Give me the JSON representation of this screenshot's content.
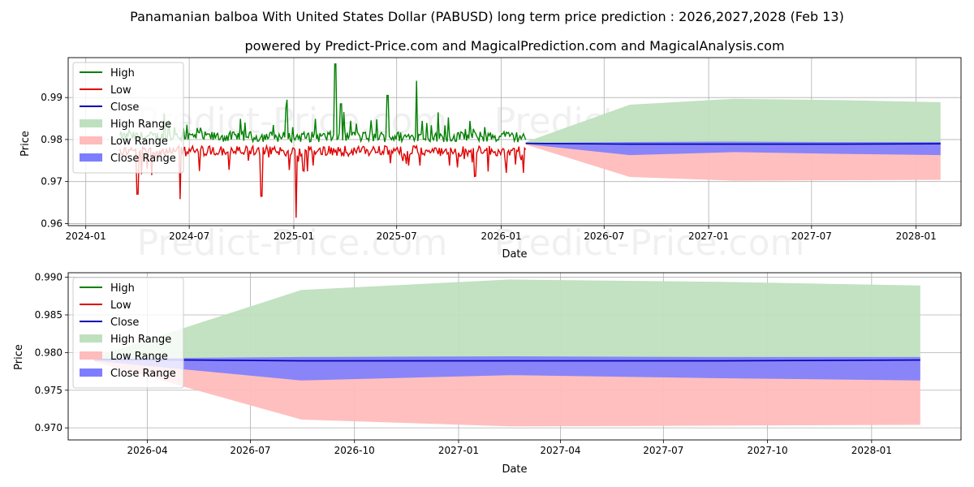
{
  "title": "Panamanian balboa With United States Dollar (PABUSD) long term price prediction : 2026,2027,2028 (Feb 13)",
  "subtitle": "powered by Predict-Price.com and MagicalPrediction.com and MagicalAnalysis.com",
  "watermark": "Predict-Price.com",
  "colors": {
    "high": "#008000",
    "low": "#e00000",
    "close": "#0000b0",
    "high_range": "#bfe0bf",
    "low_range": "#ffbcbc",
    "close_range": "#7d7dff"
  },
  "chart_data": [
    {
      "type": "line",
      "panel": "top",
      "xlabel": "Date",
      "ylabel": "Price",
      "xlim": [
        "2023-12-01",
        "2028-03-20"
      ],
      "ylim": [
        0.9595,
        0.9995
      ],
      "xticks": [
        "2024-01",
        "2024-07",
        "2025-01",
        "2025-07",
        "2026-01",
        "2026-07",
        "2027-01",
        "2027-07",
        "2028-01"
      ],
      "yticks": [
        0.96,
        0.97,
        0.98,
        0.99
      ],
      "grid": true,
      "legend": [
        "High",
        "Low",
        "Close",
        "High Range",
        "Low Range",
        "Close Range"
      ],
      "legend_loc": "top-left",
      "history": {
        "start": "2024-03-01",
        "end": "2026-02-13",
        "base": 0.979,
        "spikes_high": [
          [
            "2025-03-15",
            0.998
          ],
          [
            "2025-06-15",
            0.9905
          ],
          [
            "2024-12-20",
            0.9895
          ],
          [
            "2025-03-25",
            0.9885
          ],
          [
            "2025-08-05",
            0.994
          ]
        ],
        "spikes_low": [
          [
            "2025-01-05",
            0.9614
          ],
          [
            "2024-11-05",
            0.9665
          ],
          [
            "2024-06-15",
            0.9658
          ],
          [
            "2024-04-01",
            0.967
          ]
        ]
      },
      "series": [
        {
          "name": "High Range Upper",
          "x": [
            "2026-02-13",
            "2026-08-15",
            "2027-02-15",
            "2027-08-15",
            "2028-02-13"
          ],
          "y": [
            0.9794,
            0.9883,
            0.9897,
            0.9894,
            0.9889
          ]
        },
        {
          "name": "Low Range Lower",
          "x": [
            "2026-02-13",
            "2026-08-15",
            "2027-02-15",
            "2027-08-15",
            "2028-02-13"
          ],
          "y": [
            0.9788,
            0.9711,
            0.9702,
            0.9703,
            0.9704
          ]
        },
        {
          "name": "Close Range Upper",
          "x": [
            "2026-02-13",
            "2026-08-15",
            "2027-02-15",
            "2027-08-15",
            "2028-02-13"
          ],
          "y": [
            0.9792,
            0.9794,
            0.9795,
            0.9794,
            0.9794
          ]
        },
        {
          "name": "Close Range Lower",
          "x": [
            "2026-02-13",
            "2026-08-15",
            "2027-02-15",
            "2027-08-15",
            "2028-02-13"
          ],
          "y": [
            0.9789,
            0.9763,
            0.977,
            0.9766,
            0.9763
          ]
        },
        {
          "name": "Close",
          "x": [
            "2026-02-13",
            "2026-08-15",
            "2027-02-15",
            "2027-08-15",
            "2028-02-13"
          ],
          "y": [
            0.9791,
            0.9789,
            0.9789,
            0.9789,
            0.979
          ]
        }
      ]
    },
    {
      "type": "line",
      "panel": "bottom",
      "xlabel": "Date",
      "ylabel": "Price",
      "xlim": [
        "2026-01-21",
        "2028-03-20"
      ],
      "ylim": [
        0.9684,
        0.9906
      ],
      "xticks": [
        "2026-04",
        "2026-07",
        "2026-10",
        "2027-01",
        "2027-04",
        "2027-07",
        "2027-10",
        "2028-01"
      ],
      "yticks": [
        0.97,
        0.975,
        0.98,
        0.985,
        0.99
      ],
      "grid": true,
      "legend": [
        "High",
        "Low",
        "Close",
        "High Range",
        "Low Range",
        "Close Range"
      ],
      "legend_loc": "top-left",
      "series": [
        {
          "name": "High Range Upper",
          "x": [
            "2026-02-13",
            "2026-08-15",
            "2027-02-15",
            "2027-08-15",
            "2028-02-13"
          ],
          "y": [
            0.9794,
            0.9883,
            0.9897,
            0.9894,
            0.9889
          ]
        },
        {
          "name": "Low Range Lower",
          "x": [
            "2026-02-13",
            "2026-08-15",
            "2027-02-15",
            "2027-08-15",
            "2028-02-13"
          ],
          "y": [
            0.9788,
            0.9711,
            0.9702,
            0.9703,
            0.9704
          ]
        },
        {
          "name": "Close Range Upper",
          "x": [
            "2026-02-13",
            "2026-08-15",
            "2027-02-15",
            "2027-08-15",
            "2028-02-13"
          ],
          "y": [
            0.9792,
            0.9794,
            0.9795,
            0.9794,
            0.9794
          ]
        },
        {
          "name": "Close Range Lower",
          "x": [
            "2026-02-13",
            "2026-08-15",
            "2027-02-15",
            "2027-08-15",
            "2028-02-13"
          ],
          "y": [
            0.9789,
            0.9763,
            0.977,
            0.9766,
            0.9763
          ]
        },
        {
          "name": "Close",
          "x": [
            "2026-02-13",
            "2026-08-15",
            "2027-02-15",
            "2027-08-15",
            "2028-02-13"
          ],
          "y": [
            0.9791,
            0.9789,
            0.9789,
            0.9789,
            0.979
          ]
        }
      ]
    }
  ]
}
